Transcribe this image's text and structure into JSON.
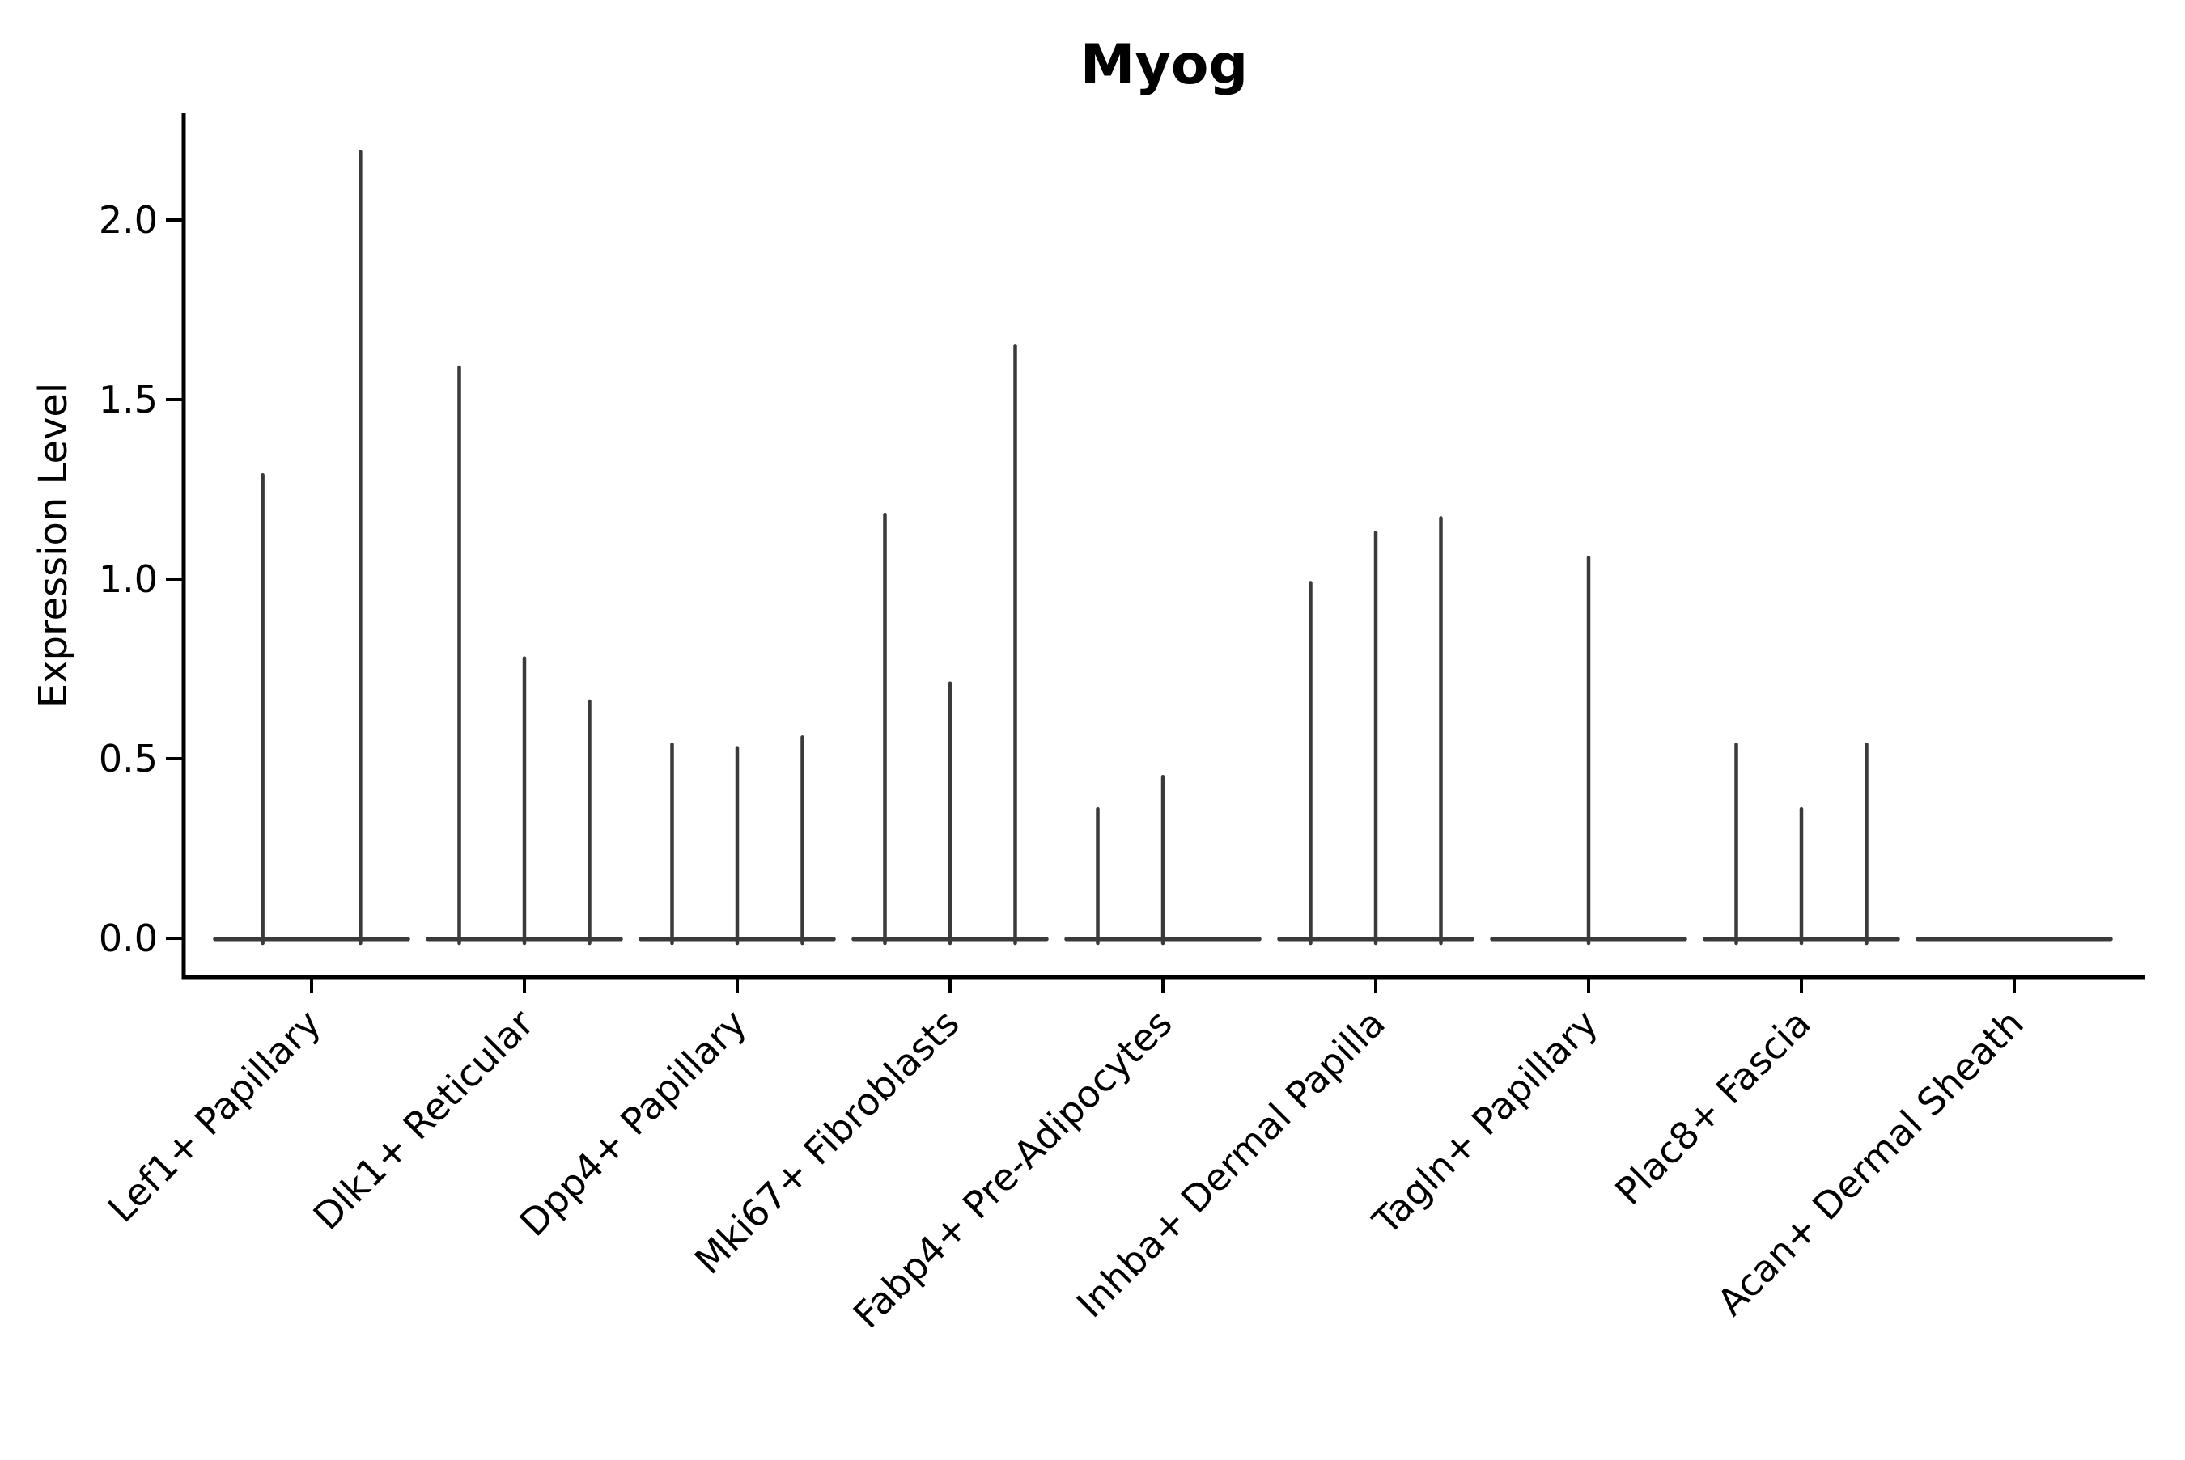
{
  "chart_data": {
    "type": "violin",
    "title": "Myog",
    "xlabel": "",
    "ylabel": "Expression Level",
    "ylim": [
      -0.11,
      2.3
    ],
    "yticks": [
      0.0,
      0.5,
      1.0,
      1.5,
      2.0
    ],
    "ytick_labels": [
      "0.0",
      "0.5",
      "1.0",
      "1.5",
      "2.0"
    ],
    "grid": false,
    "legend": null,
    "x_labels_rotation_deg": 45,
    "categories": [
      "Lef1+ Papillary",
      "Dlk1+ Reticular",
      "Dpp4+ Papillary",
      "Mki67+ Fibroblasts",
      "Fabp4+ Pre-Adipocytes",
      "Inhba+ Dermal Papilla",
      "Tagln+ Papillary",
      "Plac8+ Fascia",
      "Acan+ Dermal Sheath"
    ],
    "groups": [
      {
        "category": "Lef1+ Papillary",
        "violin_max": [
          1.29,
          2.19
        ]
      },
      {
        "category": "Dlk1+ Reticular",
        "violin_max": [
          1.59,
          0.78,
          0.66
        ]
      },
      {
        "category": "Dpp4+ Papillary",
        "violin_max": [
          0.54,
          0.53,
          0.56
        ]
      },
      {
        "category": "Mki67+ Fibroblasts",
        "violin_max": [
          1.18,
          0.71,
          1.65
        ]
      },
      {
        "category": "Fabp4+ Pre-Adipocytes",
        "violin_max": [
          0.36,
          0.45,
          0.0
        ]
      },
      {
        "category": "Inhba+ Dermal Papilla",
        "violin_max": [
          0.99,
          1.13,
          1.17
        ]
      },
      {
        "category": "Tagln+ Papillary",
        "violin_max": [
          0.0,
          1.06,
          0.0
        ]
      },
      {
        "category": "Plac8+ Fascia",
        "violin_max": [
          0.54,
          0.36,
          0.54
        ]
      },
      {
        "category": "Acan+ Dermal Sheath",
        "violin_max": [
          0.0,
          0.0,
          0.0
        ]
      }
    ],
    "colors": {
      "violin": "#3a3a3a",
      "axis": "#000000",
      "text": "#000000",
      "background": "#ffffff"
    }
  }
}
